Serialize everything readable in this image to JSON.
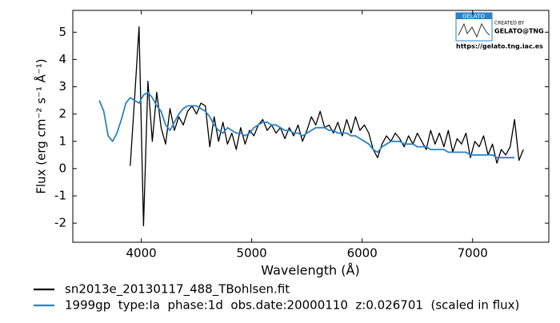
{
  "chart_data": {
    "type": "line",
    "xlabel": "Wavelength (Å)",
    "ylabel": "Flux (erg cm⁻²  s⁻¹  Å⁻¹)",
    "xlim": [
      3380,
      7690
    ],
    "ylim": [
      -2.7,
      5.8
    ],
    "xticks": [
      4000,
      5000,
      6000,
      7000
    ],
    "yticks": [
      -2,
      -1,
      0,
      1,
      2,
      3,
      4,
      5
    ],
    "legend": "below",
    "logo": {
      "name": "GELATO",
      "credit": "CREATED BY",
      "author": "GELATO@TNG",
      "url": "https://gelato.tng.iac.es"
    },
    "x": [
      3620,
      3660,
      3700,
      3740,
      3780,
      3820,
      3860,
      3900,
      3940,
      3980,
      4020,
      4060,
      4100,
      4140,
      4180,
      4220,
      4260,
      4300,
      4340,
      4380,
      4420,
      4460,
      4500,
      4540,
      4580,
      4620,
      4660,
      4700,
      4740,
      4780,
      4820,
      4860,
      4900,
      4940,
      4980,
      5020,
      5060,
      5100,
      5140,
      5180,
      5220,
      5260,
      5300,
      5340,
      5380,
      5420,
      5460,
      5500,
      5540,
      5580,
      5620,
      5660,
      5700,
      5740,
      5780,
      5820,
      5860,
      5900,
      5940,
      5980,
      6020,
      6060,
      6100,
      6140,
      6180,
      6220,
      6260,
      6300,
      6340,
      6380,
      6420,
      6460,
      6500,
      6540,
      6580,
      6620,
      6660,
      6700,
      6740,
      6780,
      6820,
      6860,
      6900,
      6940,
      6980,
      7020,
      7060,
      7100,
      7140,
      7180,
      7220,
      7260,
      7300,
      7340,
      7380,
      7420,
      7460
    ],
    "series": [
      {
        "name": "sn2013e_20130117_488_TBohlsen.fit",
        "color": "#000000",
        "values": [
          null,
          null,
          null,
          null,
          null,
          null,
          null,
          0.1,
          2.6,
          5.2,
          -2.1,
          3.2,
          1.0,
          2.8,
          1.5,
          0.9,
          2.2,
          1.4,
          1.9,
          1.6,
          2.1,
          2.3,
          2.0,
          2.4,
          2.3,
          0.8,
          1.9,
          1.0,
          1.7,
          0.9,
          1.3,
          0.7,
          1.5,
          0.9,
          1.4,
          1.2,
          1.6,
          1.8,
          1.4,
          1.6,
          1.3,
          1.5,
          1.1,
          1.5,
          1.2,
          1.6,
          1.0,
          1.4,
          1.9,
          1.6,
          2.1,
          1.5,
          1.6,
          1.3,
          1.7,
          1.2,
          1.8,
          1.3,
          1.9,
          1.4,
          1.6,
          1.3,
          0.7,
          0.4,
          0.9,
          1.2,
          1.0,
          1.3,
          1.1,
          0.8,
          1.2,
          0.9,
          1.3,
          1.0,
          0.7,
          1.4,
          0.9,
          1.3,
          0.8,
          1.4,
          0.6,
          1.1,
          0.9,
          1.3,
          0.4,
          1.0,
          0.8,
          1.2,
          0.5,
          0.9,
          0.2,
          0.7,
          0.5,
          0.8,
          1.8,
          0.3,
          0.7
        ]
      },
      {
        "name": "1999gp  type:Ia  phase:1d  obs.date:20000110  z:0.026701  (scaled in flux)",
        "color": "#2a82c8",
        "values": [
          2.5,
          2.1,
          1.2,
          1.0,
          1.3,
          1.8,
          2.4,
          2.6,
          2.5,
          2.4,
          2.7,
          2.8,
          2.6,
          2.3,
          2.1,
          1.6,
          1.4,
          1.7,
          2.0,
          2.2,
          2.3,
          2.3,
          2.3,
          2.2,
          2.1,
          1.9,
          1.6,
          1.4,
          1.3,
          1.5,
          1.4,
          1.3,
          1.3,
          1.2,
          1.3,
          1.5,
          1.6,
          1.7,
          1.7,
          1.6,
          1.6,
          1.5,
          1.4,
          1.4,
          1.3,
          1.3,
          1.2,
          1.3,
          1.4,
          1.5,
          1.5,
          1.5,
          1.4,
          1.4,
          1.3,
          1.3,
          1.3,
          1.2,
          1.2,
          1.1,
          1.0,
          0.9,
          0.7,
          0.6,
          0.8,
          0.9,
          1.0,
          1.0,
          1.0,
          0.9,
          0.9,
          0.9,
          0.8,
          0.8,
          0.8,
          0.7,
          0.7,
          0.7,
          0.7,
          0.6,
          0.6,
          0.6,
          0.6,
          0.6,
          0.5,
          0.5,
          0.5,
          0.5,
          0.5,
          0.5,
          0.4,
          0.4,
          0.4,
          0.4,
          0.4,
          null,
          null
        ]
      }
    ]
  }
}
